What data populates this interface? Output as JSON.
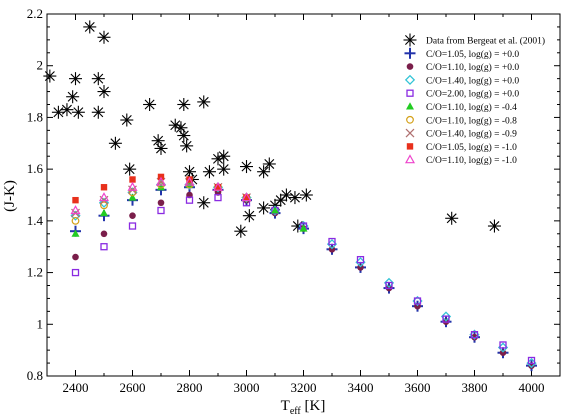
{
  "chart_data": {
    "type": "scatter",
    "xlabel_main": "T",
    "xlabel_sub": "eff",
    "xlabel_unit": " [K]",
    "ylabel": "(J-K)",
    "xlim": [
      2300,
      4100
    ],
    "ylim": [
      0.8,
      2.2
    ],
    "xticks": [
      2400,
      2600,
      2800,
      3000,
      3200,
      3400,
      3600,
      3800,
      4000
    ],
    "yticks": [
      0.8,
      1.0,
      1.2,
      1.4,
      1.6,
      1.8,
      2.0,
      2.2
    ],
    "ytick_labels": [
      "0.8",
      "1",
      "1.2",
      "1.4",
      "1.6",
      "1.8",
      "2",
      "2.2"
    ],
    "legend_position": "top-right",
    "series": [
      {
        "name": "Data from Bergeat et al. (2001)",
        "marker": "asterisk",
        "color": "#000000",
        "points": [
          [
            2310,
            1.96
          ],
          [
            2340,
            1.82
          ],
          [
            2370,
            1.83
          ],
          [
            2390,
            1.88
          ],
          [
            2400,
            1.95
          ],
          [
            2410,
            1.82
          ],
          [
            2450,
            2.15
          ],
          [
            2480,
            1.95
          ],
          [
            2480,
            1.82
          ],
          [
            2500,
            2.11
          ],
          [
            2500,
            1.9
          ],
          [
            2540,
            1.7
          ],
          [
            2580,
            1.79
          ],
          [
            2590,
            1.6
          ],
          [
            2660,
            1.85
          ],
          [
            2690,
            1.71
          ],
          [
            2700,
            1.68
          ],
          [
            2750,
            1.77
          ],
          [
            2770,
            1.76
          ],
          [
            2780,
            1.85
          ],
          [
            2780,
            1.73
          ],
          [
            2790,
            1.69
          ],
          [
            2800,
            1.59
          ],
          [
            2810,
            1.56
          ],
          [
            2850,
            1.86
          ],
          [
            2850,
            1.47
          ],
          [
            2870,
            1.59
          ],
          [
            2900,
            1.64
          ],
          [
            2920,
            1.65
          ],
          [
            2920,
            1.6
          ],
          [
            2980,
            1.36
          ],
          [
            3000,
            1.61
          ],
          [
            3010,
            1.42
          ],
          [
            3060,
            1.59
          ],
          [
            3060,
            1.45
          ],
          [
            3080,
            1.62
          ],
          [
            3100,
            1.46
          ],
          [
            3120,
            1.48
          ],
          [
            3140,
            1.5
          ],
          [
            3170,
            1.49
          ],
          [
            3180,
            1.38
          ],
          [
            3210,
            1.5
          ],
          [
            3720,
            1.41
          ],
          [
            3870,
            1.38
          ]
        ]
      },
      {
        "name": "C/O=1.05, log(g) = +0.0",
        "marker": "plus",
        "color": "#2233aa",
        "points": [
          [
            2400,
            1.36
          ],
          [
            2500,
            1.42
          ],
          [
            2600,
            1.48
          ],
          [
            2700,
            1.52
          ],
          [
            2800,
            1.53
          ],
          [
            2900,
            1.52
          ],
          [
            3000,
            1.48
          ],
          [
            3100,
            1.43
          ],
          [
            3200,
            1.37
          ],
          [
            3300,
            1.29
          ],
          [
            3400,
            1.22
          ],
          [
            3500,
            1.14
          ],
          [
            3600,
            1.07
          ],
          [
            3700,
            1.01
          ],
          [
            3800,
            0.95
          ],
          [
            3900,
            0.89
          ],
          [
            4000,
            0.84
          ]
        ]
      },
      {
        "name": "C/O=1.10, log(g) = +0.0",
        "marker": "circle",
        "color": "#7a1e4a",
        "points": [
          [
            2400,
            1.26
          ],
          [
            2500,
            1.35
          ],
          [
            2600,
            1.42
          ],
          [
            2700,
            1.47
          ],
          [
            2800,
            1.5
          ],
          [
            2900,
            1.51
          ],
          [
            3000,
            1.48
          ],
          [
            3100,
            1.43
          ],
          [
            3200,
            1.37
          ],
          [
            3300,
            1.29
          ],
          [
            3400,
            1.22
          ],
          [
            3500,
            1.14
          ],
          [
            3600,
            1.07
          ],
          [
            3700,
            1.01
          ],
          [
            3800,
            0.95
          ],
          [
            3900,
            0.89
          ],
          [
            4000,
            0.84
          ]
        ]
      },
      {
        "name": "C/O=1.40, log(g) = +0.0",
        "marker": "diamond",
        "color": "#33c4d6",
        "points": [
          [
            2400,
            1.42
          ],
          [
            2500,
            1.47
          ],
          [
            2600,
            1.51
          ],
          [
            2700,
            1.54
          ],
          [
            2800,
            1.54
          ],
          [
            2900,
            1.53
          ],
          [
            3000,
            1.49
          ],
          [
            3100,
            1.44
          ],
          [
            3200,
            1.38
          ],
          [
            3300,
            1.31
          ],
          [
            3400,
            1.24
          ],
          [
            3500,
            1.16
          ],
          [
            3600,
            1.09
          ],
          [
            3700,
            1.03
          ],
          [
            3800,
            0.96
          ],
          [
            3900,
            0.91
          ],
          [
            4000,
            0.85
          ]
        ]
      },
      {
        "name": "C/O=2.00, log(g) = +0.0",
        "marker": "square-open",
        "color": "#8a2be2",
        "points": [
          [
            2400,
            1.2
          ],
          [
            2500,
            1.3
          ],
          [
            2600,
            1.38
          ],
          [
            2700,
            1.44
          ],
          [
            2800,
            1.48
          ],
          [
            2900,
            1.49
          ],
          [
            3000,
            1.47
          ],
          [
            3100,
            1.44
          ],
          [
            3200,
            1.38
          ],
          [
            3300,
            1.32
          ],
          [
            3400,
            1.25
          ],
          [
            3500,
            1.15
          ],
          [
            3600,
            1.09
          ],
          [
            3700,
            1.02
          ],
          [
            3800,
            0.96
          ],
          [
            3900,
            0.92
          ],
          [
            4000,
            0.86
          ]
        ]
      },
      {
        "name": "C/O=1.10, log(g) = -0.4",
        "marker": "triangle",
        "color": "#22cc22",
        "points": [
          [
            2400,
            1.35
          ],
          [
            2500,
            1.43
          ],
          [
            2600,
            1.49
          ],
          [
            2700,
            1.53
          ],
          [
            2800,
            1.54
          ],
          [
            2900,
            1.53
          ],
          [
            3000,
            1.49
          ],
          [
            3100,
            1.44
          ],
          [
            3200,
            1.37
          ]
        ]
      },
      {
        "name": "C/O=1.10, log(g) = -0.8",
        "marker": "circle-open",
        "color": "#d4a017",
        "points": [
          [
            2400,
            1.4
          ],
          [
            2500,
            1.46
          ],
          [
            2600,
            1.51
          ],
          [
            2700,
            1.54
          ],
          [
            2800,
            1.54
          ],
          [
            2900,
            1.53
          ],
          [
            3000,
            1.49
          ]
        ]
      },
      {
        "name": "C/O=1.40, log(g) = -0.9",
        "marker": "cross",
        "color": "#b07070",
        "points": [
          [
            2400,
            1.43
          ],
          [
            2500,
            1.48
          ],
          [
            2600,
            1.52
          ],
          [
            2700,
            1.55
          ],
          [
            2800,
            1.55
          ],
          [
            2900,
            1.53
          ],
          [
            3000,
            1.49
          ]
        ]
      },
      {
        "name": "C/O=1.05, log(g) = -1.0",
        "marker": "square",
        "color": "#e8301c",
        "points": [
          [
            2400,
            1.48
          ],
          [
            2500,
            1.53
          ],
          [
            2600,
            1.56
          ],
          [
            2700,
            1.57
          ],
          [
            2800,
            1.56
          ],
          [
            2900,
            1.53
          ],
          [
            3000,
            1.49
          ]
        ]
      },
      {
        "name": "C/O=1.10, log(g) = -1.0",
        "marker": "triangle-open",
        "color": "#ee44cc",
        "points": [
          [
            2400,
            1.44
          ],
          [
            2500,
            1.49
          ],
          [
            2600,
            1.53
          ],
          [
            2700,
            1.55
          ],
          [
            2800,
            1.55
          ],
          [
            2900,
            1.53
          ],
          [
            3000,
            1.49
          ]
        ]
      }
    ]
  }
}
